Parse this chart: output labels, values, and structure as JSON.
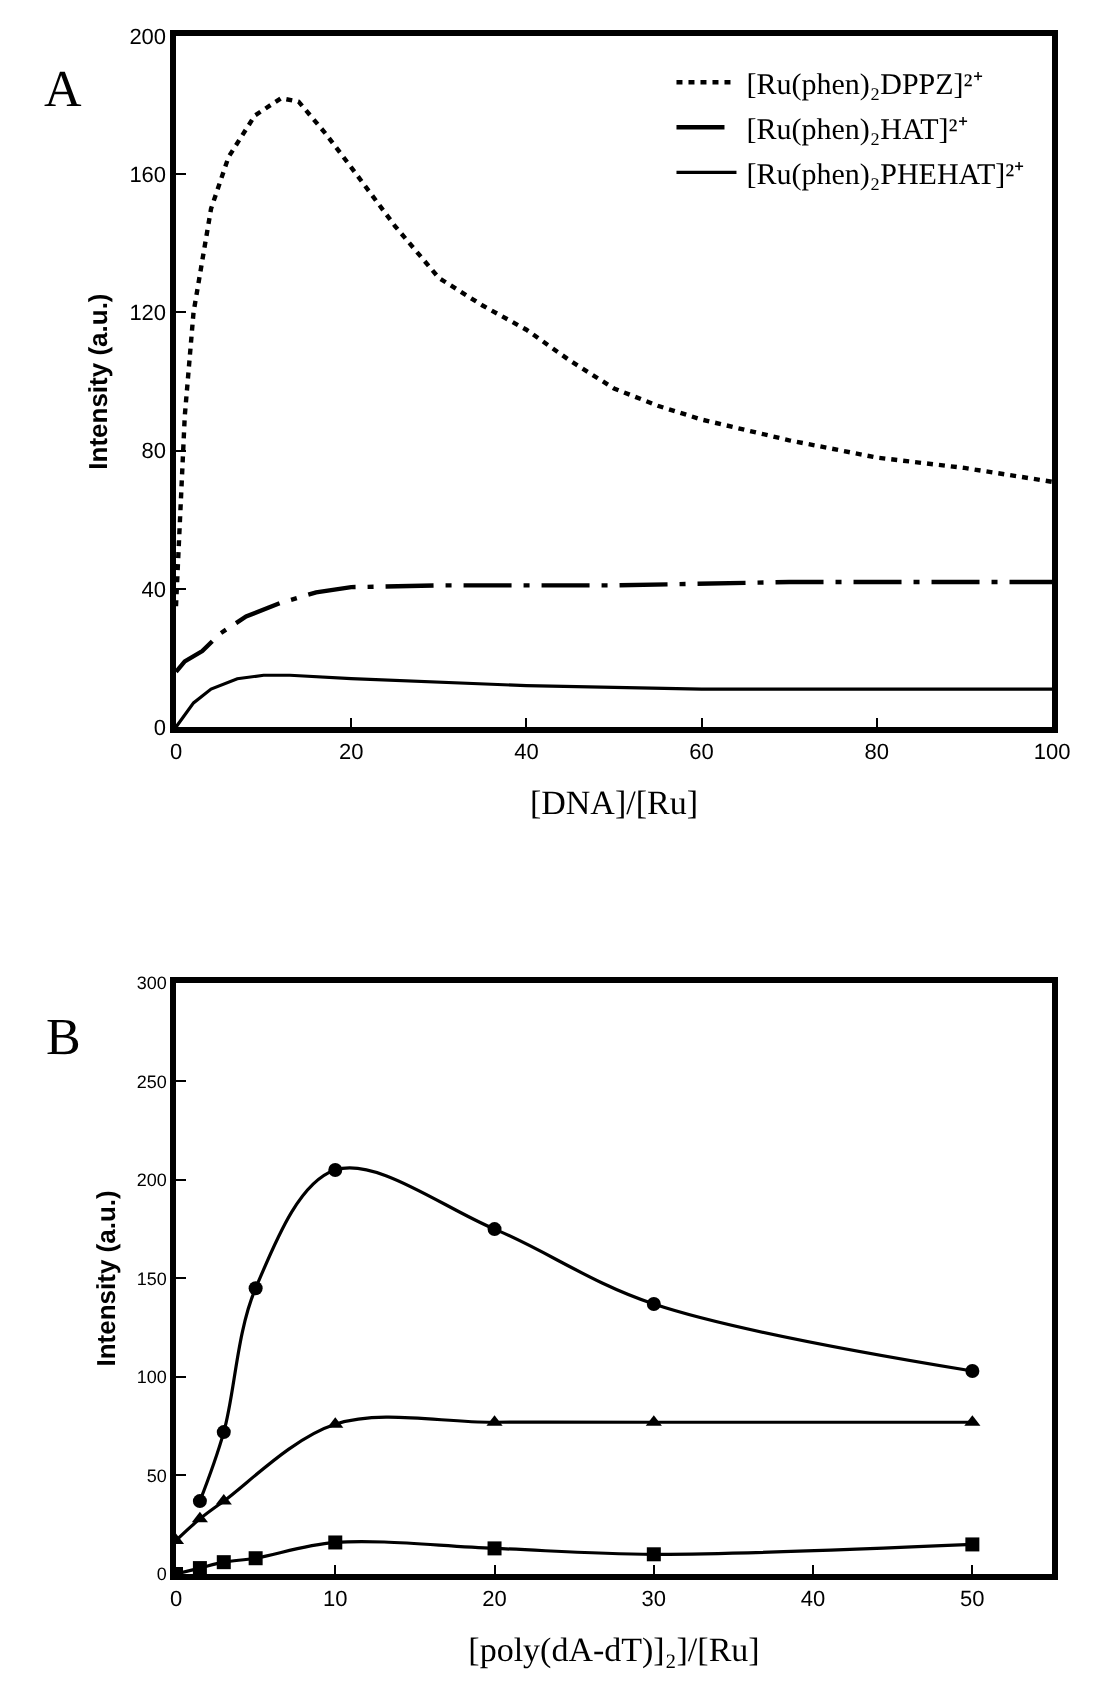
{
  "chart_data": [
    {
      "type": "line",
      "title": "A",
      "xlabel": "[DNA]/[Ru]",
      "ylabel": "Intensity (a.u.)",
      "xlim": [
        0,
        100
      ],
      "xticks": [
        0,
        20,
        40,
        60,
        80,
        100
      ],
      "ylim": [
        0,
        200
      ],
      "yticks": [
        0,
        40,
        80,
        120,
        160,
        200
      ],
      "legend": "top right",
      "marker": "none",
      "series": [
        {
          "name": "[Ru(phen)₂DPPZ]²⁺",
          "color": "#000000",
          "line_style": "dotted",
          "x": [
            0,
            1,
            2,
            4,
            6,
            9,
            12,
            14,
            17,
            20,
            25,
            30,
            35,
            40,
            45,
            50,
            55,
            60,
            70,
            80,
            90,
            100
          ],
          "values": [
            35,
            90,
            120,
            150,
            165,
            177,
            182,
            181,
            172,
            162,
            145,
            130,
            122,
            115,
            106,
            98,
            93,
            89,
            83,
            78,
            75,
            71
          ]
        },
        {
          "name": "[Ru(phen)₂HAT]²⁺",
          "color": "#000000",
          "line_style": "dashdot",
          "x": [
            0,
            1,
            3,
            5,
            8,
            12,
            16,
            20,
            30,
            50,
            70,
            100
          ],
          "values": [
            16,
            19,
            22,
            27,
            32,
            36,
            39,
            40.5,
            41,
            41,
            42,
            42
          ]
        },
        {
          "name": "[Ru(phen)₂PHEHAT]²⁺",
          "color": "#000000",
          "line_style": "solid",
          "x": [
            0,
            2,
            4,
            7,
            10,
            13,
            20,
            40,
            60,
            100
          ],
          "values": [
            0,
            7,
            11,
            14,
            15,
            15,
            14,
            12,
            11,
            11
          ]
        }
      ]
    },
    {
      "type": "line",
      "title": "B",
      "xlabel": "[poly(dA-dT)]₂]/[Ru]",
      "ylabel": "Intensity (a.u.)",
      "xlim": [
        0,
        55
      ],
      "xticks": [
        0,
        10,
        20,
        30,
        40,
        50
      ],
      "ylim": [
        0,
        300
      ],
      "yticks": [
        0,
        50,
        100,
        150,
        200,
        250,
        300
      ],
      "legend": false,
      "line_style": "solid",
      "series": [
        {
          "color": "#000000",
          "marker": "circle",
          "x": [
            1.5,
            3,
            5,
            10,
            20,
            30,
            50
          ],
          "values": [
            37,
            72,
            145,
            205,
            175,
            137,
            103
          ]
        },
        {
          "color": "#000000",
          "marker": "triangle",
          "x": [
            0,
            1.5,
            3,
            10,
            20,
            30,
            50
          ],
          "values": [
            17,
            28,
            37,
            76,
            77,
            77,
            77
          ]
        },
        {
          "color": "#000000",
          "marker": "square",
          "x": [
            0,
            1.5,
            3,
            5,
            10,
            20,
            30,
            50
          ],
          "values": [
            0,
            3,
            6,
            8,
            16,
            13,
            10,
            15
          ]
        }
      ]
    }
  ]
}
